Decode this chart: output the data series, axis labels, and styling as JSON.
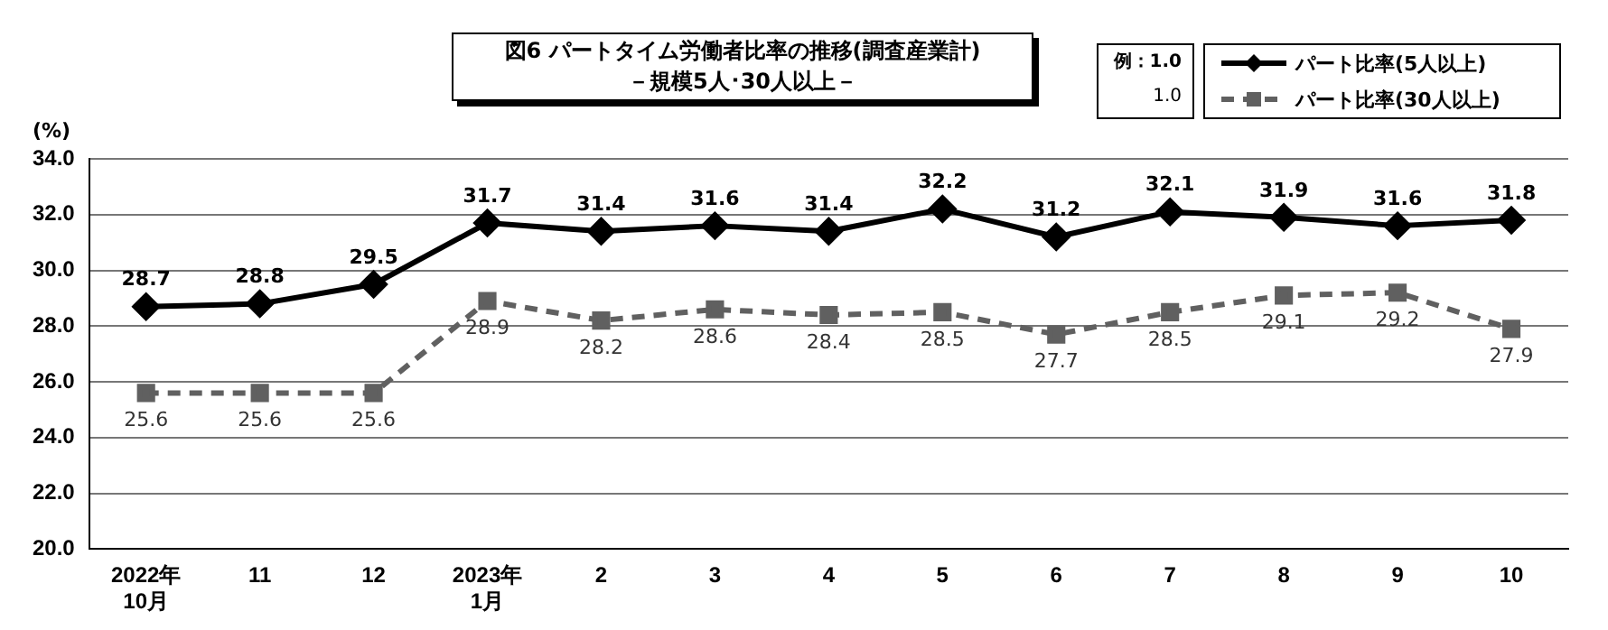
{
  "chart_data": {
    "type": "line",
    "title": "図6  パートタイム労働者比率の推移(調査産業計)",
    "subtitle": "－規模5人･30人以上－",
    "ylabel": "(%)",
    "categories": [
      "2022年\n10月",
      "11",
      "12",
      "2023年\n1月",
      "2",
      "3",
      "4",
      "5",
      "6",
      "7",
      "8",
      "9",
      "10"
    ],
    "series": [
      {
        "name": "パート比率(5人以上)",
        "color": "#000000",
        "marker": "diamond",
        "line_style": "solid",
        "values": [
          28.7,
          28.8,
          29.5,
          31.7,
          31.4,
          31.6,
          31.4,
          32.2,
          31.2,
          32.1,
          31.9,
          31.6,
          31.8
        ]
      },
      {
        "name": "パート比率(30人以上)",
        "color": "#606060",
        "marker": "square",
        "line_style": "dashed",
        "values": [
          25.6,
          25.6,
          25.6,
          28.9,
          28.2,
          28.6,
          28.4,
          28.5,
          27.7,
          28.5,
          29.1,
          29.2,
          27.9
        ]
      }
    ],
    "ylim": [
      20,
      34
    ],
    "yticks": [
      {
        "value": 20,
        "label": "20.0"
      },
      {
        "value": 22,
        "label": "22.0"
      },
      {
        "value": 24,
        "label": "24.0"
      },
      {
        "value": 26,
        "label": "26.0"
      },
      {
        "value": 28,
        "label": "28.0"
      },
      {
        "value": 30,
        "label": "30.0"
      },
      {
        "value": 32,
        "label": "32.0"
      },
      {
        "value": 34,
        "label": "34.0"
      }
    ],
    "grid": "y",
    "legend": "top right",
    "data_labels": true,
    "annotations": [
      "例：1.0",
      "1.0"
    ]
  }
}
